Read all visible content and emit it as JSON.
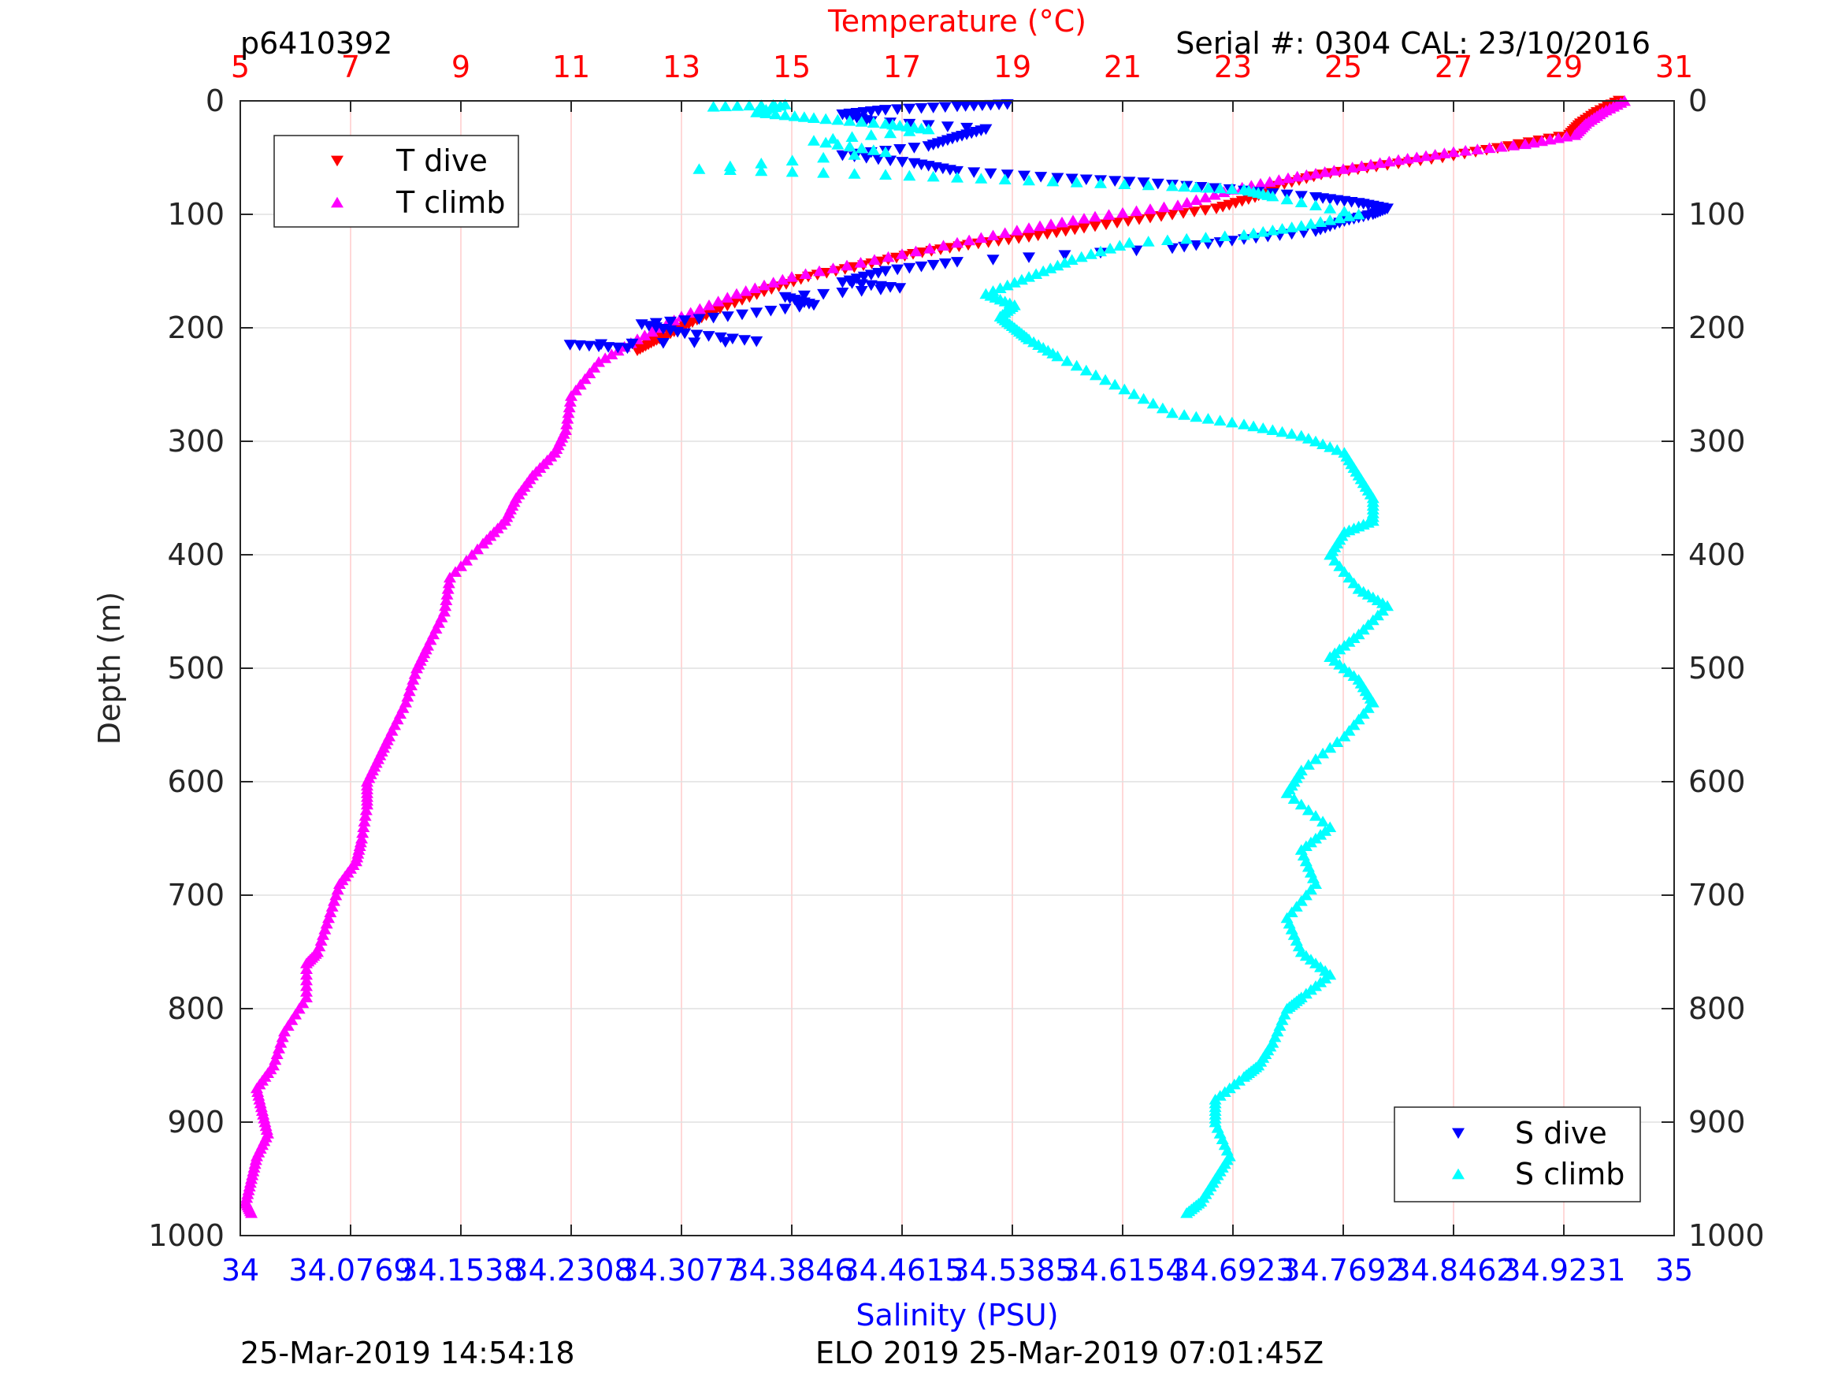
{
  "header": {
    "profile_id": "p6410392",
    "serial": "Serial #: 0304  CAL: 23/10/2016"
  },
  "footer": {
    "left_timestamp": "25-Mar-2019 14:54:18",
    "center_text": "ELO 2019 25-Mar-2019 07:01:45Z"
  },
  "colors": {
    "t_dive": "#ff0000",
    "t_climb": "#ff00ff",
    "s_dive": "#0000ff",
    "s_climb": "#00ffff",
    "temperature_axis": "#ff0000",
    "salinity_axis": "#0000ff",
    "grid_vertical": "#ffcccc",
    "grid_horizontal": "#e0e0e0"
  },
  "chart_data": {
    "type": "scatter",
    "title": "",
    "ylabel": "Depth (m)",
    "ylim": [
      0,
      1000
    ],
    "y_reversed": true,
    "yticks": [
      "0",
      "100",
      "200",
      "300",
      "400",
      "500",
      "600",
      "700",
      "800",
      "900",
      "1000"
    ],
    "temperature_axis": {
      "label": "Temperature (°C)",
      "position": "top",
      "range": [
        5,
        31
      ],
      "ticks": [
        "5",
        "7",
        "9",
        "11",
        "13",
        "15",
        "17",
        "19",
        "21",
        "23",
        "25",
        "27",
        "29",
        "31"
      ]
    },
    "salinity_axis": {
      "label": "Salinity (PSU)",
      "position": "bottom",
      "range": [
        34,
        35
      ],
      "ticks": [
        "34",
        "34.0769",
        "34.1538",
        "34.2308",
        "34.3077",
        "34.3846",
        "34.4615",
        "34.5385",
        "34.6154",
        "34.6923",
        "34.7692",
        "34.8462",
        "34.9231",
        "35"
      ]
    },
    "grid": true,
    "legends": [
      {
        "placement": "top-left",
        "entries": [
          "T dive",
          "T climb"
        ]
      },
      {
        "placement": "bottom-right",
        "entries": [
          "S dive",
          "S climb"
        ]
      }
    ],
    "series": [
      {
        "name": "T dive",
        "axis": "temperature",
        "marker": "triangle-down",
        "points": [
          [
            30.0,
            0
          ],
          [
            29.6,
            10
          ],
          [
            29.3,
            20
          ],
          [
            29.1,
            30
          ],
          [
            28.0,
            40
          ],
          [
            26.8,
            50
          ],
          [
            25.6,
            58
          ],
          [
            24.6,
            65
          ],
          [
            23.8,
            75
          ],
          [
            23.4,
            85
          ],
          [
            22.7,
            95
          ],
          [
            21.5,
            103
          ],
          [
            20.3,
            112
          ],
          [
            19.3,
            120
          ],
          [
            18.2,
            127
          ],
          [
            17.2,
            135
          ],
          [
            16.3,
            145
          ],
          [
            15.3,
            155
          ],
          [
            14.5,
            168
          ],
          [
            13.7,
            183
          ],
          [
            13.2,
            195
          ],
          [
            12.8,
            205
          ],
          [
            12.5,
            212
          ],
          [
            12.2,
            220
          ]
        ]
      },
      {
        "name": "T climb",
        "axis": "temperature",
        "marker": "triangle-up",
        "points": [
          [
            30.1,
            0
          ],
          [
            29.7,
            10
          ],
          [
            29.4,
            20
          ],
          [
            29.2,
            30
          ],
          [
            28.3,
            38
          ],
          [
            27.0,
            45
          ],
          [
            26.0,
            52
          ],
          [
            25.0,
            60
          ],
          [
            24.0,
            68
          ],
          [
            23.0,
            78
          ],
          [
            22.0,
            92
          ],
          [
            20.5,
            102
          ],
          [
            19.3,
            112
          ],
          [
            18.0,
            125
          ],
          [
            16.5,
            140
          ],
          [
            15.0,
            155
          ],
          [
            14.0,
            170
          ],
          [
            13.0,
            190
          ],
          [
            12.2,
            210
          ],
          [
            11.5,
            230
          ],
          [
            11.0,
            260
          ],
          [
            10.9,
            290
          ],
          [
            10.7,
            310
          ],
          [
            10.3,
            330
          ],
          [
            10.0,
            350
          ],
          [
            9.8,
            370
          ],
          [
            9.4,
            390
          ],
          [
            8.8,
            420
          ],
          [
            8.7,
            450
          ],
          [
            8.4,
            480
          ],
          [
            8.2,
            500
          ],
          [
            8.0,
            530
          ],
          [
            7.7,
            560
          ],
          [
            7.5,
            580
          ],
          [
            7.3,
            600
          ],
          [
            7.3,
            620
          ],
          [
            7.2,
            650
          ],
          [
            7.1,
            670
          ],
          [
            6.8,
            690
          ],
          [
            6.6,
            720
          ],
          [
            6.4,
            750
          ],
          [
            6.2,
            760
          ],
          [
            6.2,
            790
          ],
          [
            5.8,
            820
          ],
          [
            5.6,
            850
          ],
          [
            5.3,
            870
          ],
          [
            5.4,
            890
          ],
          [
            5.5,
            910
          ],
          [
            5.3,
            930
          ],
          [
            5.2,
            950
          ],
          [
            5.1,
            970
          ],
          [
            5.2,
            980
          ]
        ]
      },
      {
        "name": "S dive",
        "axis": "salinity",
        "marker": "triangle-down",
        "points": [
          [
            34.535,
            3
          ],
          [
            34.5,
            5
          ],
          [
            34.45,
            8
          ],
          [
            34.42,
            12
          ],
          [
            34.44,
            18
          ],
          [
            34.52,
            25
          ],
          [
            34.5,
            32
          ],
          [
            34.48,
            40
          ],
          [
            34.42,
            48
          ],
          [
            34.47,
            55
          ],
          [
            34.5,
            62
          ],
          [
            34.57,
            68
          ],
          [
            34.63,
            72
          ],
          [
            34.69,
            78
          ],
          [
            34.75,
            85
          ],
          [
            34.78,
            90
          ],
          [
            34.8,
            95
          ],
          [
            34.79,
            100
          ],
          [
            34.77,
            106
          ],
          [
            34.75,
            115
          ],
          [
            34.7,
            122
          ],
          [
            34.65,
            130
          ],
          [
            34.5,
            142
          ],
          [
            34.45,
            150
          ],
          [
            34.42,
            160
          ],
          [
            34.46,
            165
          ],
          [
            34.38,
            173
          ],
          [
            34.4,
            180
          ],
          [
            34.34,
            190
          ],
          [
            34.28,
            197
          ],
          [
            34.31,
            205
          ],
          [
            34.36,
            212
          ],
          [
            34.23,
            215
          ],
          [
            34.27,
            218
          ]
        ]
      },
      {
        "name": "S climb",
        "axis": "salinity",
        "marker": "triangle-up",
        "points": [
          [
            34.33,
            5
          ],
          [
            34.38,
            3
          ],
          [
            34.36,
            10
          ],
          [
            34.4,
            15
          ],
          [
            34.45,
            20
          ],
          [
            34.48,
            25
          ],
          [
            34.4,
            35
          ],
          [
            34.45,
            45
          ],
          [
            34.32,
            60
          ],
          [
            34.45,
            65
          ],
          [
            34.55,
            70
          ],
          [
            34.65,
            75
          ],
          [
            34.7,
            78
          ],
          [
            34.72,
            84
          ],
          [
            34.78,
            100
          ],
          [
            34.74,
            110
          ],
          [
            34.7,
            118
          ],
          [
            34.62,
            125
          ],
          [
            34.58,
            140
          ],
          [
            34.55,
            155
          ],
          [
            34.52,
            170
          ],
          [
            34.54,
            180
          ],
          [
            34.53,
            190
          ],
          [
            34.54,
            200
          ],
          [
            34.55,
            210
          ],
          [
            34.57,
            225
          ],
          [
            34.61,
            250
          ],
          [
            34.65,
            275
          ],
          [
            34.7,
            285
          ],
          [
            34.74,
            295
          ],
          [
            34.77,
            310
          ],
          [
            34.78,
            330
          ],
          [
            34.79,
            350
          ],
          [
            34.79,
            370
          ],
          [
            34.77,
            380
          ],
          [
            34.76,
            400
          ],
          [
            34.78,
            430
          ],
          [
            34.8,
            445
          ],
          [
            34.78,
            470
          ],
          [
            34.76,
            490
          ],
          [
            34.78,
            510
          ],
          [
            34.79,
            530
          ],
          [
            34.77,
            560
          ],
          [
            34.74,
            590
          ],
          [
            34.73,
            610
          ],
          [
            34.76,
            640
          ],
          [
            34.74,
            660
          ],
          [
            34.75,
            690
          ],
          [
            34.73,
            720
          ],
          [
            34.74,
            750
          ],
          [
            34.76,
            770
          ],
          [
            34.74,
            790
          ],
          [
            34.73,
            800
          ],
          [
            34.72,
            830
          ],
          [
            34.71,
            850
          ],
          [
            34.7,
            860
          ],
          [
            34.68,
            880
          ],
          [
            34.68,
            900
          ],
          [
            34.69,
            930
          ],
          [
            34.68,
            950
          ],
          [
            34.67,
            970
          ],
          [
            34.66,
            980
          ]
        ]
      }
    ]
  }
}
